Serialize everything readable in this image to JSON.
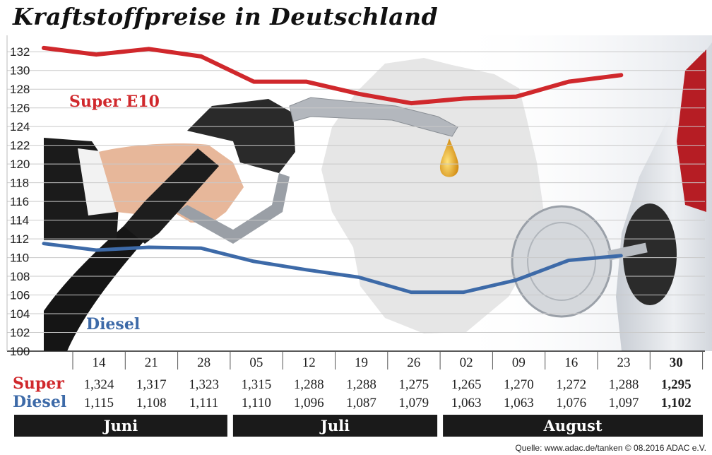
{
  "title": "Kraftstoffpreise in Deutschland",
  "source": "Quelle: www.adac.de/tanken  © 08.2016  ADAC e.V.",
  "colors": {
    "super": "#d0282c",
    "diesel": "#3d6aa8",
    "bar": "#1a1a1a"
  },
  "chart_data": {
    "type": "line",
    "title": "Kraftstoffpreise in Deutschland",
    "x": [
      "14",
      "21",
      "28",
      "05",
      "12",
      "19",
      "26",
      "02",
      "09",
      "16",
      "23",
      "30"
    ],
    "months": [
      {
        "label": "Juni",
        "from": 0,
        "to": 2
      },
      {
        "label": "Juli",
        "from": 3,
        "to": 6
      },
      {
        "label": "August",
        "from": 7,
        "to": 11
      }
    ],
    "ylim": [
      100,
      133
    ],
    "yticks": [
      100,
      102,
      104,
      106,
      108,
      110,
      112,
      114,
      116,
      118,
      120,
      122,
      124,
      126,
      128,
      130,
      132
    ],
    "grid": true,
    "series": [
      {
        "name": "Super E10",
        "row_label": "Super",
        "key": "super",
        "values": [
          132.4,
          131.7,
          132.3,
          131.5,
          128.8,
          128.8,
          127.5,
          126.5,
          127.0,
          127.2,
          128.8,
          129.5
        ],
        "table": [
          "1,324",
          "1,317",
          "1,323",
          "1,315",
          "1,288",
          "1,288",
          "1,275",
          "1,265",
          "1,270",
          "1,272",
          "1,288",
          "1,295"
        ]
      },
      {
        "name": "Diesel",
        "row_label": "Diesel",
        "key": "diesel",
        "values": [
          111.5,
          110.8,
          111.1,
          111.0,
          109.6,
          108.7,
          107.9,
          106.3,
          106.3,
          107.6,
          109.7,
          110.2
        ],
        "table": [
          "1,115",
          "1,108",
          "1,111",
          "1,110",
          "1,096",
          "1,087",
          "1,079",
          "1,063",
          "1,063",
          "1,076",
          "1,097",
          "1,102"
        ]
      }
    ]
  }
}
